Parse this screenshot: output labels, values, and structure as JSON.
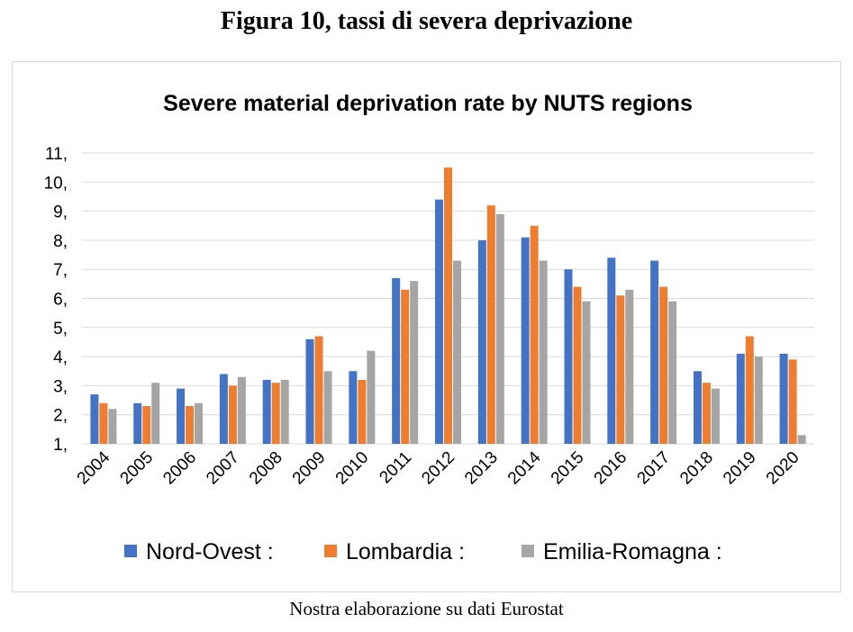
{
  "figure_title": "Figura 10, tassi di severa deprivazione",
  "caption": "Nostra elaborazione su dati Eurostat",
  "chart_data": {
    "type": "bar",
    "title": "Severe material deprivation rate by NUTS regions",
    "xlabel": "",
    "ylabel": "",
    "ylim": [
      1,
      11
    ],
    "y_ticks": [
      "1,",
      "2,",
      "3,",
      "4,",
      "5,",
      "6,",
      "7,",
      "8,",
      "9,",
      "10,",
      "11,"
    ],
    "grid": true,
    "legend_position": "bottom",
    "categories": [
      "2004",
      "2005",
      "2006",
      "2007",
      "2008",
      "2009",
      "2010",
      "2011",
      "2012",
      "2013",
      "2014",
      "2015",
      "2016",
      "2017",
      "2018",
      "2019",
      "2020"
    ],
    "series": [
      {
        "name": "Nord-Ovest :",
        "color": "#4472c4",
        "values": [
          2.7,
          2.4,
          2.9,
          3.4,
          3.2,
          4.6,
          3.5,
          6.7,
          9.4,
          8.0,
          8.1,
          7.0,
          7.4,
          7.3,
          3.5,
          4.1,
          4.1
        ]
      },
      {
        "name": "Lombardia :",
        "color": "#ed7d31",
        "values": [
          2.4,
          2.3,
          2.3,
          3.0,
          3.1,
          4.7,
          3.2,
          6.3,
          10.5,
          9.2,
          8.5,
          6.4,
          6.1,
          6.4,
          3.1,
          4.7,
          3.9
        ]
      },
      {
        "name": "Emilia-Romagna :",
        "color": "#a5a5a5",
        "values": [
          2.2,
          3.1,
          2.4,
          3.3,
          3.2,
          3.5,
          4.2,
          6.6,
          7.3,
          8.9,
          7.3,
          5.9,
          6.3,
          5.9,
          2.9,
          4.0,
          1.3
        ]
      }
    ]
  }
}
